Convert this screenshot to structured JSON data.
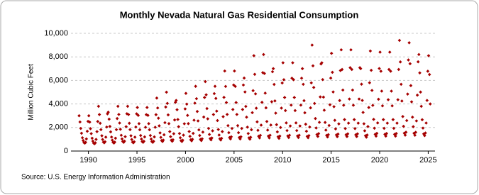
{
  "chart_data": {
    "type": "scatter",
    "title": "Monthly Nevada Natural Gas Residential Consumption",
    "y_label": "Million Cubic Feet",
    "source": "Source: U.S. Energy Information Administration",
    "xlim": [
      1988.2,
      2025.7
    ],
    "xticks": [
      1990,
      1995,
      2000,
      2005,
      2010,
      2015,
      2020,
      2025
    ],
    "ylim": [
      0,
      10000
    ],
    "yticks": [
      0,
      {
        "value": 2000,
        "label": "2,000"
      },
      {
        "value": 4000,
        "label": "4,000"
      },
      {
        "value": 6000,
        "label": "6,000"
      },
      {
        "value": 8000,
        "label": "8,000"
      },
      {
        "value": 10000,
        "label": "10,000"
      }
    ],
    "grid": true,
    "color": "#a50000",
    "x": [
      1989.04,
      1989.13,
      1989.21,
      1989.29,
      1989.38,
      1989.46,
      1989.54,
      1989.63,
      1989.71,
      1989.79,
      1989.88,
      1989.96,
      1990.04,
      1990.13,
      1990.21,
      1990.29,
      1990.38,
      1990.46,
      1990.54,
      1990.63,
      1990.71,
      1990.79,
      1990.88,
      1990.96,
      1991.04,
      1991.13,
      1991.21,
      1991.29,
      1991.38,
      1991.46,
      1991.54,
      1991.63,
      1991.71,
      1991.79,
      1991.88,
      1991.96,
      1992.04,
      1992.13,
      1992.21,
      1992.29,
      1992.38,
      1992.46,
      1992.54,
      1992.63,
      1992.71,
      1992.79,
      1992.88,
      1992.96,
      1993.04,
      1993.13,
      1993.21,
      1993.29,
      1993.38,
      1993.46,
      1993.54,
      1993.63,
      1993.71,
      1993.79,
      1993.88,
      1993.96,
      1994.04,
      1994.13,
      1994.21,
      1994.29,
      1994.38,
      1994.46,
      1994.54,
      1994.63,
      1994.71,
      1994.79,
      1994.88,
      1994.96,
      1995.04,
      1995.13,
      1995.21,
      1995.29,
      1995.38,
      1995.46,
      1995.54,
      1995.63,
      1995.71,
      1995.79,
      1995.88,
      1995.96,
      1996.04,
      1996.13,
      1996.21,
      1996.29,
      1996.38,
      1996.46,
      1996.54,
      1996.63,
      1996.71,
      1996.79,
      1996.88,
      1996.96,
      1997.04,
      1997.13,
      1997.21,
      1997.29,
      1997.38,
      1997.46,
      1997.54,
      1997.63,
      1997.71,
      1997.79,
      1997.88,
      1997.96,
      1998.04,
      1998.13,
      1998.21,
      1998.29,
      1998.38,
      1998.46,
      1998.54,
      1998.63,
      1998.71,
      1998.79,
      1998.88,
      1998.96,
      1999.04,
      1999.13,
      1999.21,
      1999.29,
      1999.38,
      1999.46,
      1999.54,
      1999.63,
      1999.71,
      1999.79,
      1999.88,
      1999.96,
      2000.04,
      2000.13,
      2000.21,
      2000.29,
      2000.38,
      2000.46,
      2000.54,
      2000.63,
      2000.71,
      2000.79,
      2000.88,
      2000.96,
      2001.04,
      2001.13,
      2001.21,
      2001.29,
      2001.38,
      2001.46,
      2001.54,
      2001.63,
      2001.71,
      2001.79,
      2001.88,
      2001.96,
      2002.04,
      2002.13,
      2002.21,
      2002.29,
      2002.38,
      2002.46,
      2002.54,
      2002.63,
      2002.71,
      2002.79,
      2002.88,
      2002.96,
      2003.04,
      2003.13,
      2003.21,
      2003.29,
      2003.38,
      2003.46,
      2003.54,
      2003.63,
      2003.71,
      2003.79,
      2003.88,
      2003.96,
      2004.04,
      2004.13,
      2004.21,
      2004.29,
      2004.38,
      2004.46,
      2004.54,
      2004.63,
      2004.71,
      2004.79,
      2004.88,
      2004.96,
      2005.04,
      2005.13,
      2005.21,
      2005.29,
      2005.38,
      2005.46,
      2005.54,
      2005.63,
      2005.71,
      2005.79,
      2005.88,
      2005.96,
      2006.04,
      2006.13,
      2006.21,
      2006.29,
      2006.38,
      2006.46,
      2006.54,
      2006.63,
      2006.71,
      2006.79,
      2006.88,
      2006.96,
      2007.04,
      2007.13,
      2007.21,
      2007.29,
      2007.38,
      2007.46,
      2007.54,
      2007.63,
      2007.71,
      2007.79,
      2007.88,
      2007.96,
      2008.04,
      2008.13,
      2008.21,
      2008.29,
      2008.38,
      2008.46,
      2008.54,
      2008.63,
      2008.71,
      2008.79,
      2008.88,
      2008.96,
      2009.04,
      2009.13,
      2009.21,
      2009.29,
      2009.38,
      2009.46,
      2009.54,
      2009.63,
      2009.71,
      2009.79,
      2009.88,
      2009.96,
      2010.04,
      2010.13,
      2010.21,
      2010.29,
      2010.38,
      2010.46,
      2010.54,
      2010.63,
      2010.71,
      2010.79,
      2010.88,
      2010.96,
      2011.04,
      2011.13,
      2011.21,
      2011.29,
      2011.38,
      2011.46,
      2011.54,
      2011.63,
      2011.71,
      2011.79,
      2011.88,
      2011.96,
      2012.04,
      2012.13,
      2012.21,
      2012.29,
      2012.38,
      2012.46,
      2012.54,
      2012.63,
      2012.71,
      2012.79,
      2012.88,
      2012.96,
      2013.04,
      2013.13,
      2013.21,
      2013.29,
      2013.38,
      2013.46,
      2013.54,
      2013.63,
      2013.71,
      2013.79,
      2013.88,
      2013.96,
      2014.04,
      2014.13,
      2014.21,
      2014.29,
      2014.38,
      2014.46,
      2014.54,
      2014.63,
      2014.71,
      2014.79,
      2014.88,
      2014.96,
      2015.04,
      2015.13,
      2015.21,
      2015.29,
      2015.38,
      2015.46,
      2015.54,
      2015.63,
      2015.71,
      2015.79,
      2015.88,
      2015.96,
      2016.04,
      2016.13,
      2016.21,
      2016.29,
      2016.38,
      2016.46,
      2016.54,
      2016.63,
      2016.71,
      2016.79,
      2016.88,
      2016.96,
      2017.04,
      2017.13,
      2017.21,
      2017.29,
      2017.38,
      2017.46,
      2017.54,
      2017.63,
      2017.71,
      2017.79,
      2017.88,
      2017.96,
      2018.04,
      2018.13,
      2018.21,
      2018.29,
      2018.38,
      2018.46,
      2018.54,
      2018.63,
      2018.71,
      2018.79,
      2018.88,
      2018.96,
      2019.04,
      2019.13,
      2019.21,
      2019.29,
      2019.38,
      2019.46,
      2019.54,
      2019.63,
      2019.71,
      2019.79,
      2019.88,
      2019.96,
      2020.04,
      2020.13,
      2020.21,
      2020.29,
      2020.38,
      2020.46,
      2020.54,
      2020.63,
      2020.71,
      2020.79,
      2020.88,
      2020.96,
      2021.04,
      2021.13,
      2021.21,
      2021.29,
      2021.38,
      2021.46,
      2021.54,
      2021.63,
      2021.71,
      2021.79,
      2021.88,
      2021.96,
      2022.04,
      2022.13,
      2022.21,
      2022.29,
      2022.38,
      2022.46,
      2022.54,
      2022.63,
      2022.71,
      2022.79,
      2022.88,
      2022.96,
      2023.04,
      2023.13,
      2023.21,
      2023.29,
      2023.38,
      2023.46,
      2023.54,
      2023.63,
      2023.71,
      2023.79,
      2023.88,
      2023.96,
      2024.04,
      2024.13,
      2024.21,
      2024.29,
      2024.38,
      2024.46,
      2024.54,
      2024.63,
      2024.71,
      2024.79,
      2024.88,
      2024.96,
      2025.04,
      2025.13,
      2025.21
    ],
    "values": [
      3000,
      2470,
      1920,
      1510,
      1130,
      890,
      720,
      670,
      740,
      1030,
      1680,
      2520,
      3000,
      2460,
      1900,
      1480,
      1090,
      840,
      670,
      620,
      700,
      990,
      1650,
      2510,
      3800,
      3100,
      2360,
      1820,
      1300,
      980,
      760,
      700,
      790,
      1180,
      2040,
      3160,
      3300,
      2710,
      2090,
      1630,
      1190,
      920,
      740,
      680,
      760,
      1090,
      1820,
      2760,
      3800,
      3110,
      2380,
      1850,
      1340,
      1030,
      810,
      740,
      840,
      1220,
      2070,
      3170,
      3800,
      3100,
      2360,
      1820,
      1300,
      980,
      760,
      700,
      790,
      1180,
      2040,
      3160,
      3700,
      3030,
      2330,
      1810,
      1320,
      1020,
      800,
      740,
      830,
      1200,
      2020,
      3090,
      3700,
      3030,
      2330,
      1810,
      1320,
      1020,
      800,
      740,
      830,
      1200,
      2020,
      3090,
      4500,
      3660,
      2790,
      2140,
      1540,
      1160,
      890,
      810,
      930,
      1380,
      2410,
      3740,
      5000,
      4050,
      3070,
      2330,
      1650,
      1220,
      920,
      830,
      960,
      1470,
      2640,
      4140,
      4300,
      3510,
      2680,
      2070,
      1490,
      1130,
      880,
      810,
      920,
      1350,
      2320,
      3580,
      4900,
      3990,
      3030,
      2330,
      1660,
      1250,
      960,
      870,
      1000,
      1500,
      2620,
      4070,
      5500,
      4450,
      3360,
      2560,
      1800,
      1320,
      990,
      890,
      1040,
      1610,
      2890,
      4550,
      5900,
      4780,
      3610,
      2740,
      1920,
      1410,
      1060,
      950,
      1110,
      1720,
      3100,
      4880,
      5500,
      4470,
      3390,
      2590,
      1830,
      1360,
      1040,
      940,
      1080,
      1650,
      2920,
      4560,
      6800,
      5490,
      4120,
      3110,
      2160,
      1560,
      1150,
      1030,
      1210,
      1920,
      3530,
      5610,
      6800,
      5490,
      4120,
      3110,
      2160,
      1560,
      1150,
      1030,
      1210,
      1920,
      3530,
      5610,
      6200,
      5020,
      3790,
      2880,
      2030,
      1490,
      1120,
      1010,
      1170,
      1810,
      3260,
      5130,
      8100,
      6520,
      4860,
      3640,
      2480,
      1760,
      1260,
      1120,
      1330,
      2200,
      4140,
      6660,
      8200,
      6590,
      4920,
      3670,
      2510,
      1780,
      1270,
      1120,
      1340,
      2210,
      4190,
      6740,
      7000,
      5660,
      4260,
      3220,
      2240,
      1630,
      1210,
      1080,
      1270,
      2000,
      3650,
      5780,
      7500,
      6060,
      4550,
      3440,
      2390,
      1740,
      1280,
      1150,
      1340,
      2130,
      3900,
      6190,
      7500,
      6060,
      4550,
      3440,
      2390,
      1740,
      1280,
      1150,
      1340,
      2130,
      3900,
      6190,
      7000,
      5670,
      4280,
      3250,
      2280,
      1680,
      1250,
      1130,
      1310,
      2040,
      3670,
      5790,
      9000,
      7240,
      5400,
      4040,
      2760,
      1960,
      1400,
      1240,
      1480,
      2440,
      4600,
      7400,
      7500,
      6070,
      4580,
      3470,
      2430,
      1780,
      1330,
      1200,
      1390,
      2170,
      3930,
      6200,
      8300,
      6690,
      5020,
      3770,
      2610,
      1880,
      1370,
      1220,
      1440,
      2310,
      4290,
      6840,
      8600,
      6930,
      5180,
      3890,
      2670,
      1910,
      1380,
      1230,
      1460,
      2370,
      4420,
      7080,
      8600,
      6930,
      5180,
      3890,
      2670,
      1910,
      1380,
      1230,
      1460,
      2370,
      4420,
      7080,
      7000,
      5680,
      4300,
      3280,
      2320,
      1720,
      1300,
      1180,
      1360,
      2080,
      3700,
      5800,
      8500,
      6860,
      5150,
      3880,
      2690,
      1940,
      1420,
      1270,
      1500,
      2390,
      4400,
      7010,
      8400,
      6780,
      5090,
      3840,
      2670,
      1930,
      1420,
      1270,
      1490,
      2370,
      4360,
      6930,
      8400,
      6780,
      5090,
      3840,
      2670,
      1930,
      1420,
      1270,
      1490,
      2370,
      4360,
      6930,
      9400,
      7570,
      5670,
      4250,
      2930,
      2100,
      1520,
      1350,
      1600,
      2590,
      4840,
      7740,
      9200,
      7420,
      5560,
      4180,
      2880,
      2070,
      1510,
      1340,
      1590,
      2560,
      4750,
      7580,
      8200,
      6640,
      5010,
      3800,
      2660,
      1950,
      1460,
      1310,
      1530,
      2380,
      4300,
      6780,
      8100,
      6500,
      4000
    ]
  }
}
